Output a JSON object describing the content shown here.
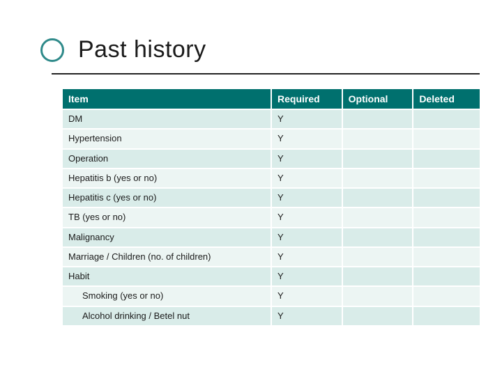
{
  "title": "Past history",
  "colors": {
    "accent": "#00706e",
    "ring": "#2f8a8a",
    "row_odd": "#d9ece9",
    "row_even": "#ecf5f3",
    "rule": "#222222",
    "text": "#1a1a1a",
    "header_text": "#ffffff",
    "background": "#ffffff"
  },
  "typography": {
    "title_fontsize": 34,
    "header_fontsize": 14,
    "cell_fontsize": 13,
    "font_family": "Verdana"
  },
  "table": {
    "type": "table",
    "columns": [
      "Item",
      "Required",
      "Optional",
      "Deleted"
    ],
    "col_widths_pct": [
      50,
      17,
      17,
      16
    ],
    "rows": [
      {
        "item": "DM",
        "required": "Y",
        "optional": "",
        "deleted": "",
        "indent": false
      },
      {
        "item": "Hypertension",
        "required": "Y",
        "optional": "",
        "deleted": "",
        "indent": false
      },
      {
        "item": "Operation",
        "required": "Y",
        "optional": "",
        "deleted": "",
        "indent": false
      },
      {
        "item": "Hepatitis b (yes or no)",
        "required": "Y",
        "optional": "",
        "deleted": "",
        "indent": false
      },
      {
        "item": "Hepatitis c (yes or no)",
        "required": "Y",
        "optional": "",
        "deleted": "",
        "indent": false
      },
      {
        "item": "TB (yes or no)",
        "required": "Y",
        "optional": "",
        "deleted": "",
        "indent": false
      },
      {
        "item": "Malignancy",
        "required": "Y",
        "optional": "",
        "deleted": "",
        "indent": false
      },
      {
        "item": "Marriage / Children (no. of children)",
        "required": "Y",
        "optional": "",
        "deleted": "",
        "indent": false
      },
      {
        "item": "Habit",
        "required": "Y",
        "optional": "",
        "deleted": "",
        "indent": false
      },
      {
        "item": "Smoking (yes or no)",
        "required": "Y",
        "optional": "",
        "deleted": "",
        "indent": true
      },
      {
        "item": "Alcohol drinking / Betel nut",
        "required": "Y",
        "optional": "",
        "deleted": "",
        "indent": true
      }
    ]
  }
}
